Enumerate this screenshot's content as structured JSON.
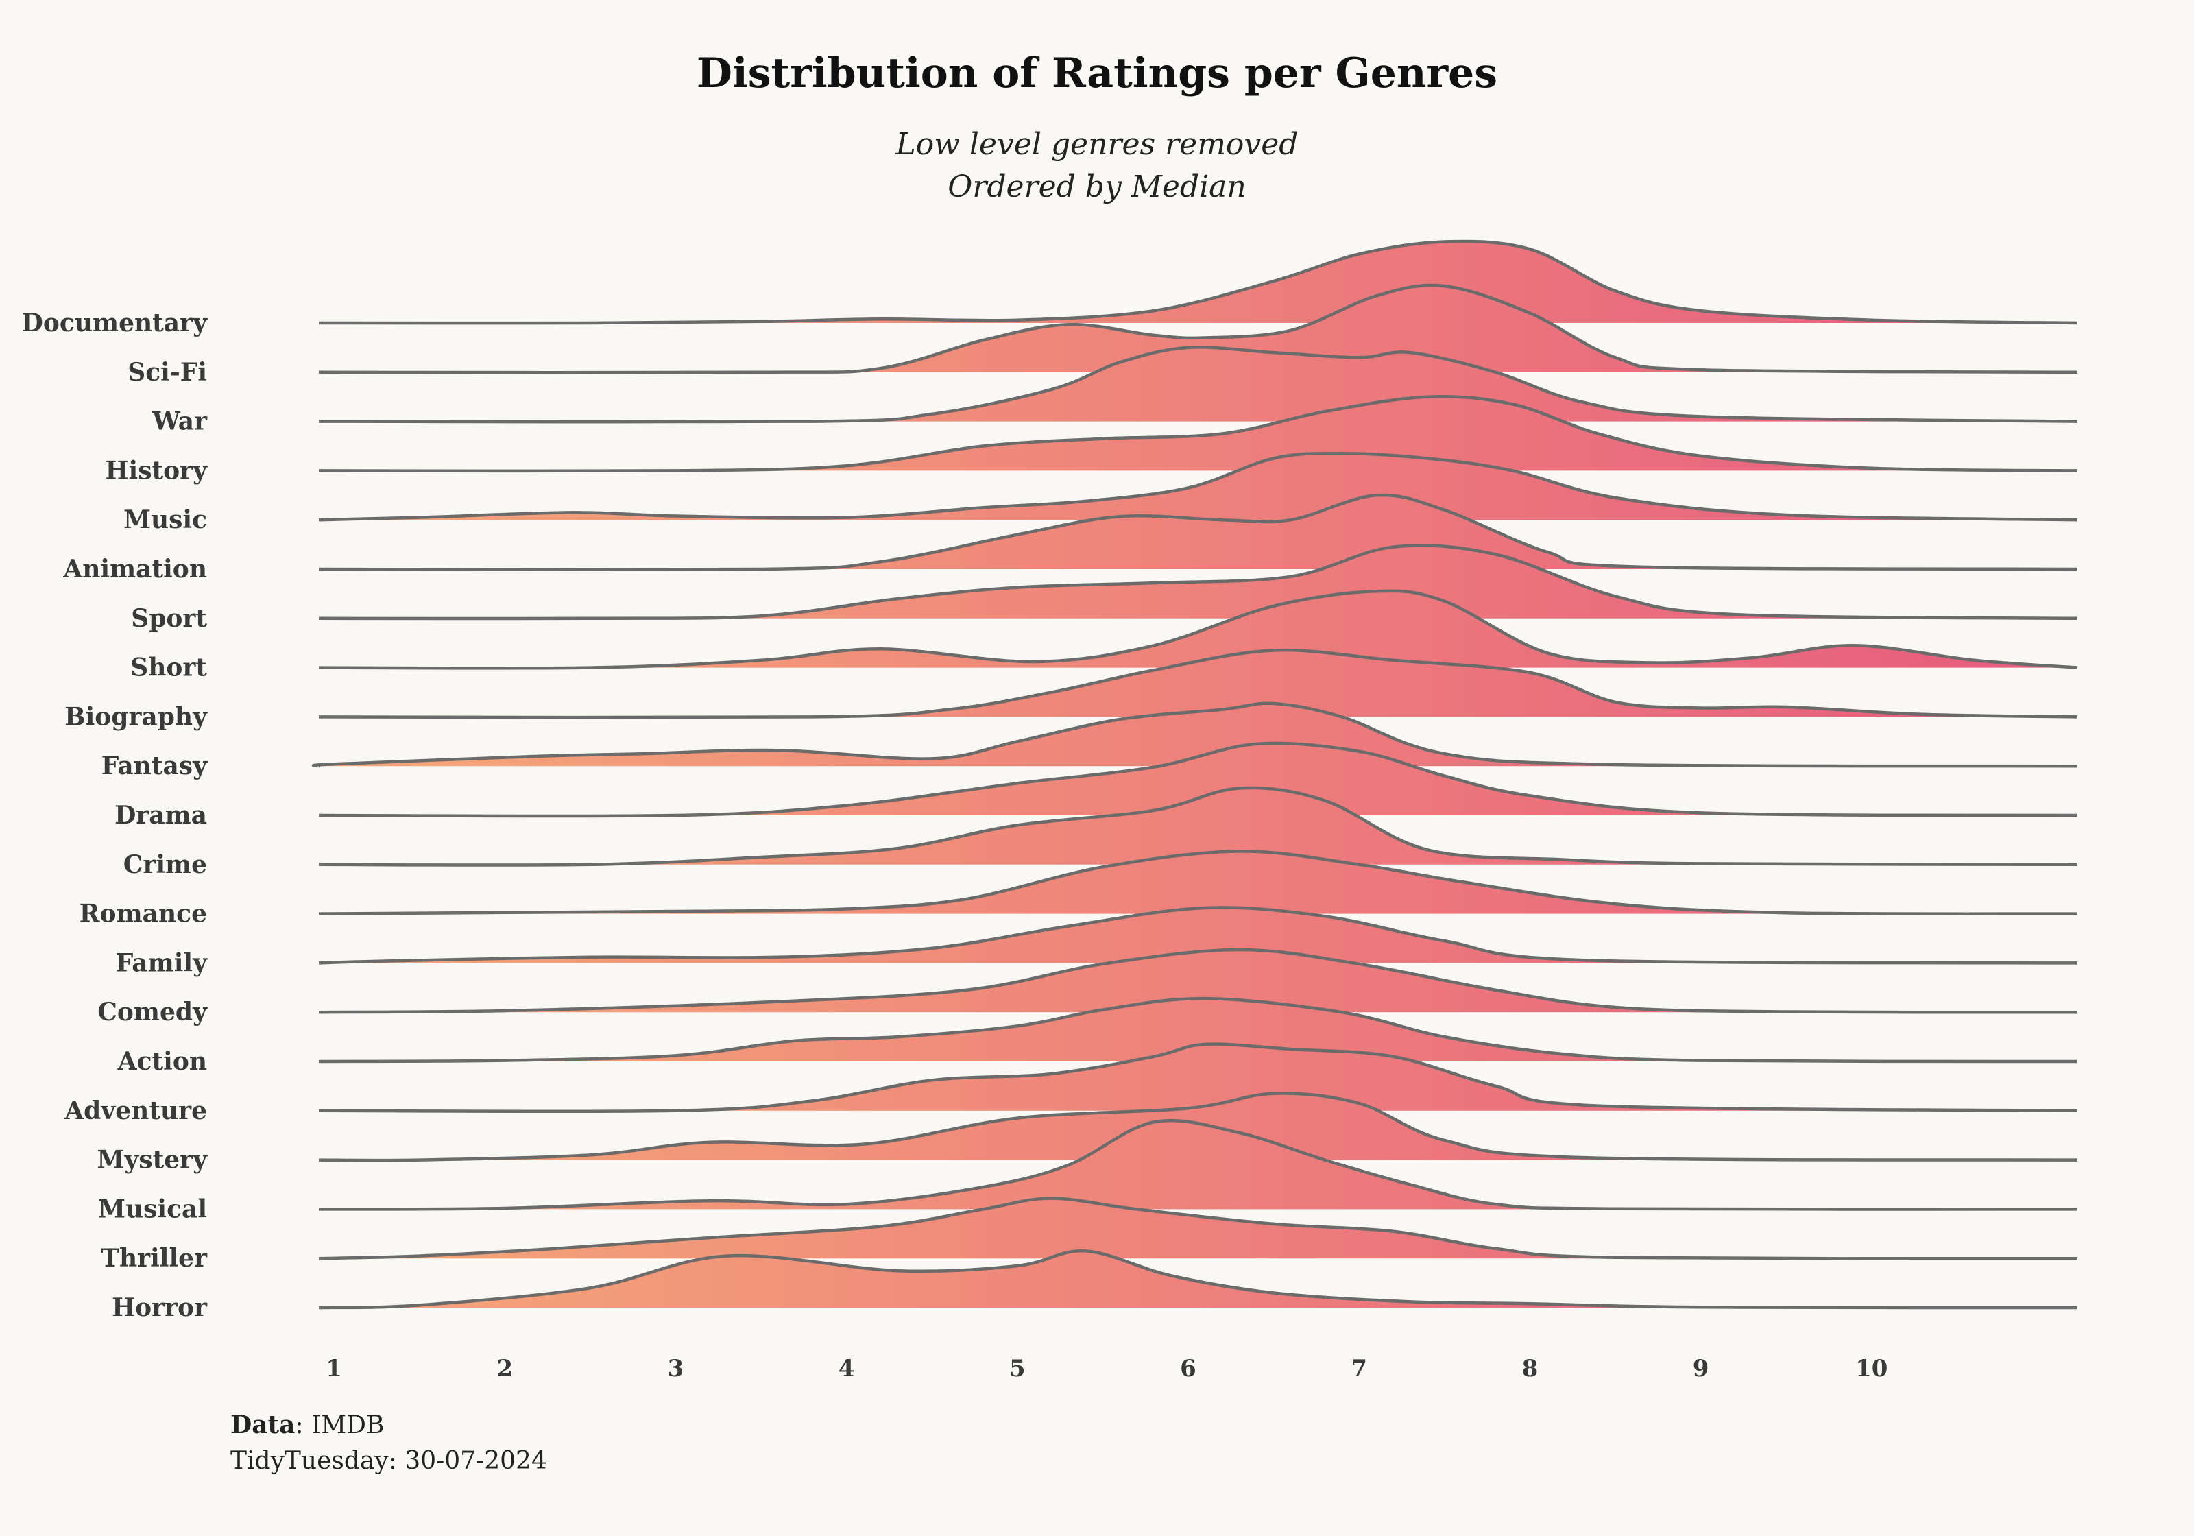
{
  "page": {
    "background": "#f9f8f4"
  },
  "header": {
    "title": "Distribution of Ratings per Genres",
    "subtitle_line1": "Low level genres removed",
    "subtitle_line2": "Ordered by Median"
  },
  "caption": {
    "data_label": "Data",
    "data_value": ": IMDB",
    "line2": "TidyTuesday: 30-07-2024"
  },
  "colors": {
    "fill_low": "#f5a878",
    "fill_high": "#e65a7f",
    "outline": "#6b6b6b"
  },
  "chart_data": {
    "type": "ridgeline",
    "title": "Distribution of Ratings per Genres",
    "subtitle": [
      "Low level genres removed",
      "Ordered by Median"
    ],
    "xlabel": "",
    "ylabel": "",
    "x_ticks": [
      1,
      2,
      3,
      4,
      5,
      6,
      7,
      8,
      9,
      10
    ],
    "xlim": [
      0.1,
      11.4
    ],
    "grid": false,
    "legend": "none",
    "density_scale": "height relative to row spacing",
    "series": [
      {
        "name": "Documentary",
        "points": [
          [
            0.1,
            0
          ],
          [
            2.5,
            0
          ],
          [
            3.5,
            0.03
          ],
          [
            4.2,
            0.08
          ],
          [
            5.0,
            0.06
          ],
          [
            5.8,
            0.25
          ],
          [
            6.5,
            0.85
          ],
          [
            7.0,
            1.4
          ],
          [
            7.5,
            1.65
          ],
          [
            8.0,
            1.5
          ],
          [
            8.5,
            0.65
          ],
          [
            9.0,
            0.25
          ],
          [
            10.0,
            0.06
          ],
          [
            11.4,
            0
          ]
        ]
      },
      {
        "name": "Sci-Fi",
        "points": [
          [
            0.1,
            0
          ],
          [
            3.5,
            0
          ],
          [
            4.2,
            0.08
          ],
          [
            4.8,
            0.65
          ],
          [
            5.3,
            0.97
          ],
          [
            5.8,
            0.75
          ],
          [
            6.1,
            0.7
          ],
          [
            6.6,
            0.85
          ],
          [
            7.1,
            1.55
          ],
          [
            7.5,
            1.75
          ],
          [
            8.0,
            1.2
          ],
          [
            8.5,
            0.3
          ],
          [
            9.0,
            0.05
          ],
          [
            11.4,
            0
          ]
        ]
      },
      {
        "name": "War",
        "points": [
          [
            0.1,
            0
          ],
          [
            3.8,
            0
          ],
          [
            4.5,
            0.15
          ],
          [
            5.2,
            0.65
          ],
          [
            5.6,
            1.2
          ],
          [
            6.0,
            1.5
          ],
          [
            6.5,
            1.4
          ],
          [
            7.0,
            1.3
          ],
          [
            7.3,
            1.4
          ],
          [
            7.8,
            1.0
          ],
          [
            8.3,
            0.4
          ],
          [
            9.0,
            0.1
          ],
          [
            11.4,
            0
          ]
        ]
      },
      {
        "name": "History",
        "points": [
          [
            0.1,
            0
          ],
          [
            3.0,
            0
          ],
          [
            4.0,
            0.1
          ],
          [
            4.8,
            0.5
          ],
          [
            5.5,
            0.65
          ],
          [
            6.2,
            0.75
          ],
          [
            6.8,
            1.2
          ],
          [
            7.4,
            1.5
          ],
          [
            7.9,
            1.35
          ],
          [
            8.4,
            0.75
          ],
          [
            9.0,
            0.3
          ],
          [
            10.0,
            0.05
          ],
          [
            11.4,
            0
          ]
        ]
      },
      {
        "name": "Music",
        "points": [
          [
            0.1,
            0
          ],
          [
            1.5,
            0.05
          ],
          [
            2.4,
            0.15
          ],
          [
            3.0,
            0.08
          ],
          [
            4.0,
            0.05
          ],
          [
            4.8,
            0.25
          ],
          [
            5.4,
            0.38
          ],
          [
            6.0,
            0.65
          ],
          [
            6.5,
            1.25
          ],
          [
            6.9,
            1.35
          ],
          [
            7.4,
            1.25
          ],
          [
            7.9,
            1.0
          ],
          [
            8.5,
            0.45
          ],
          [
            9.5,
            0.1
          ],
          [
            11.4,
            0
          ]
        ]
      },
      {
        "name": "Animation",
        "points": [
          [
            0.1,
            0
          ],
          [
            3.5,
            0
          ],
          [
            4.2,
            0.15
          ],
          [
            5.0,
            0.7
          ],
          [
            5.6,
            1.07
          ],
          [
            6.2,
            1.0
          ],
          [
            6.6,
            1.0
          ],
          [
            7.1,
            1.5
          ],
          [
            7.5,
            1.2
          ],
          [
            8.1,
            0.35
          ],
          [
            8.6,
            0.05
          ],
          [
            11.4,
            0
          ]
        ]
      },
      {
        "name": "Sport",
        "points": [
          [
            0.1,
            0
          ],
          [
            2.5,
            0
          ],
          [
            3.5,
            0.05
          ],
          [
            4.3,
            0.4
          ],
          [
            5.0,
            0.63
          ],
          [
            5.8,
            0.72
          ],
          [
            6.6,
            0.85
          ],
          [
            7.2,
            1.45
          ],
          [
            7.8,
            1.3
          ],
          [
            8.5,
            0.45
          ],
          [
            9.2,
            0.08
          ],
          [
            11.4,
            0
          ]
        ]
      },
      {
        "name": "Short",
        "points": [
          [
            0.1,
            0
          ],
          [
            2.5,
            0
          ],
          [
            3.5,
            0.15
          ],
          [
            4.2,
            0.38
          ],
          [
            5.1,
            0.12
          ],
          [
            5.8,
            0.45
          ],
          [
            6.5,
            1.25
          ],
          [
            7.1,
            1.55
          ],
          [
            7.5,
            1.35
          ],
          [
            8.1,
            0.3
          ],
          [
            8.7,
            0.1
          ],
          [
            9.3,
            0.2
          ],
          [
            9.9,
            0.45
          ],
          [
            10.6,
            0.15
          ],
          [
            11.4,
            0
          ]
        ]
      },
      {
        "name": "Biography",
        "points": [
          [
            0.1,
            0
          ],
          [
            3.8,
            0
          ],
          [
            4.6,
            0.15
          ],
          [
            5.2,
            0.5
          ],
          [
            5.8,
            0.95
          ],
          [
            6.5,
            1.35
          ],
          [
            7.2,
            1.15
          ],
          [
            8.0,
            0.9
          ],
          [
            8.5,
            0.3
          ],
          [
            9.0,
            0.18
          ],
          [
            9.5,
            0.2
          ],
          [
            10.3,
            0.05
          ],
          [
            11.4,
            0
          ]
        ]
      },
      {
        "name": "Fantasy",
        "points": [
          [
            0.1,
            0
          ],
          [
            1.0,
            0.04
          ],
          [
            2.2,
            0.2
          ],
          [
            2.8,
            0.25
          ],
          [
            3.6,
            0.32
          ],
          [
            4.5,
            0.15
          ],
          [
            5.0,
            0.5
          ],
          [
            5.6,
            0.95
          ],
          [
            6.2,
            1.15
          ],
          [
            6.5,
            1.27
          ],
          [
            6.9,
            1.0
          ],
          [
            7.5,
            0.25
          ],
          [
            8.5,
            0.03
          ],
          [
            11.4,
            0
          ]
        ]
      },
      {
        "name": "Drama",
        "points": [
          [
            0.1,
            0
          ],
          [
            3.0,
            0
          ],
          [
            4.0,
            0.2
          ],
          [
            5.0,
            0.65
          ],
          [
            5.8,
            0.98
          ],
          [
            6.4,
            1.45
          ],
          [
            7.0,
            1.3
          ],
          [
            7.5,
            0.8
          ],
          [
            8.0,
            0.4
          ],
          [
            9.0,
            0.05
          ],
          [
            11.4,
            0
          ]
        ]
      },
      {
        "name": "Crime",
        "points": [
          [
            0.1,
            0
          ],
          [
            2.5,
            0
          ],
          [
            3.5,
            0.15
          ],
          [
            4.3,
            0.33
          ],
          [
            5.0,
            0.8
          ],
          [
            5.8,
            1.1
          ],
          [
            6.3,
            1.55
          ],
          [
            6.8,
            1.3
          ],
          [
            7.4,
            0.3
          ],
          [
            8.2,
            0.1
          ],
          [
            9.0,
            0.02
          ],
          [
            11.4,
            0
          ]
        ]
      },
      {
        "name": "Romance",
        "points": [
          [
            0.1,
            0
          ],
          [
            3.0,
            0.05
          ],
          [
            4.0,
            0.1
          ],
          [
            4.7,
            0.3
          ],
          [
            5.5,
            0.95
          ],
          [
            6.3,
            1.27
          ],
          [
            7.0,
            1.0
          ],
          [
            7.6,
            0.65
          ],
          [
            8.5,
            0.2
          ],
          [
            9.5,
            0.02
          ],
          [
            11.4,
            0
          ]
        ]
      },
      {
        "name": "Family",
        "points": [
          [
            0.1,
            0
          ],
          [
            1.3,
            0.04
          ],
          [
            2.5,
            0.12
          ],
          [
            3.6,
            0.12
          ],
          [
            4.5,
            0.3
          ],
          [
            5.3,
            0.75
          ],
          [
            6.1,
            1.12
          ],
          [
            6.8,
            0.95
          ],
          [
            7.5,
            0.45
          ],
          [
            8.3,
            0.06
          ],
          [
            11.4,
            0
          ]
        ]
      },
      {
        "name": "Comedy",
        "points": [
          [
            0.1,
            0
          ],
          [
            2.0,
            0.03
          ],
          [
            3.5,
            0.2
          ],
          [
            4.7,
            0.45
          ],
          [
            5.5,
            0.98
          ],
          [
            6.3,
            1.27
          ],
          [
            7.0,
            0.98
          ],
          [
            7.8,
            0.45
          ],
          [
            8.5,
            0.1
          ],
          [
            9.5,
            0.01
          ],
          [
            11.4,
            0
          ]
        ]
      },
      {
        "name": "Action",
        "points": [
          [
            0.1,
            0
          ],
          [
            2.0,
            0.02
          ],
          [
            3.0,
            0.12
          ],
          [
            3.7,
            0.42
          ],
          [
            4.3,
            0.5
          ],
          [
            5.0,
            0.72
          ],
          [
            5.5,
            1.05
          ],
          [
            6.1,
            1.28
          ],
          [
            6.9,
            1.0
          ],
          [
            7.5,
            0.5
          ],
          [
            8.2,
            0.15
          ],
          [
            9.0,
            0.02
          ],
          [
            11.4,
            0
          ]
        ]
      },
      {
        "name": "Adventure",
        "points": [
          [
            0.1,
            0
          ],
          [
            3.0,
            0
          ],
          [
            3.8,
            0.2
          ],
          [
            4.5,
            0.62
          ],
          [
            5.2,
            0.75
          ],
          [
            5.8,
            1.1
          ],
          [
            6.1,
            1.35
          ],
          [
            6.6,
            1.25
          ],
          [
            7.2,
            1.1
          ],
          [
            7.8,
            0.5
          ],
          [
            8.4,
            0.1
          ],
          [
            11.4,
            0
          ]
        ]
      },
      {
        "name": "Mystery",
        "points": [
          [
            0.1,
            0
          ],
          [
            1.5,
            0
          ],
          [
            2.5,
            0.1
          ],
          [
            3.2,
            0.36
          ],
          [
            4.1,
            0.32
          ],
          [
            5.0,
            0.85
          ],
          [
            6.0,
            1.05
          ],
          [
            6.5,
            1.35
          ],
          [
            7.0,
            1.15
          ],
          [
            7.5,
            0.4
          ],
          [
            8.3,
            0.05
          ],
          [
            11.4,
            0
          ]
        ]
      },
      {
        "name": "Musical",
        "points": [
          [
            0.1,
            0
          ],
          [
            2.0,
            0.02
          ],
          [
            3.2,
            0.17
          ],
          [
            4.0,
            0.1
          ],
          [
            4.8,
            0.45
          ],
          [
            5.3,
            0.9
          ],
          [
            5.8,
            1.77
          ],
          [
            6.3,
            1.55
          ],
          [
            6.8,
            1.0
          ],
          [
            7.3,
            0.5
          ],
          [
            7.8,
            0.1
          ],
          [
            8.5,
            0.01
          ],
          [
            11.4,
            0
          ]
        ]
      },
      {
        "name": "Thriller",
        "points": [
          [
            0.1,
            0
          ],
          [
            1.5,
            0.05
          ],
          [
            2.3,
            0.2
          ],
          [
            3.2,
            0.42
          ],
          [
            4.2,
            0.65
          ],
          [
            4.8,
            1.0
          ],
          [
            5.2,
            1.22
          ],
          [
            5.7,
            1.0
          ],
          [
            6.5,
            0.7
          ],
          [
            7.2,
            0.55
          ],
          [
            7.8,
            0.2
          ],
          [
            8.5,
            0.02
          ],
          [
            11.4,
            0
          ]
        ]
      },
      {
        "name": "Horror",
        "points": [
          [
            0.1,
            0
          ],
          [
            1.5,
            0.05
          ],
          [
            2.5,
            0.4
          ],
          [
            3.3,
            1.05
          ],
          [
            4.3,
            0.75
          ],
          [
            5.0,
            0.85
          ],
          [
            5.4,
            1.15
          ],
          [
            5.9,
            0.65
          ],
          [
            6.5,
            0.3
          ],
          [
            7.3,
            0.12
          ],
          [
            8.0,
            0.08
          ],
          [
            9.0,
            0.01
          ],
          [
            11.4,
            0
          ]
        ]
      }
    ]
  }
}
